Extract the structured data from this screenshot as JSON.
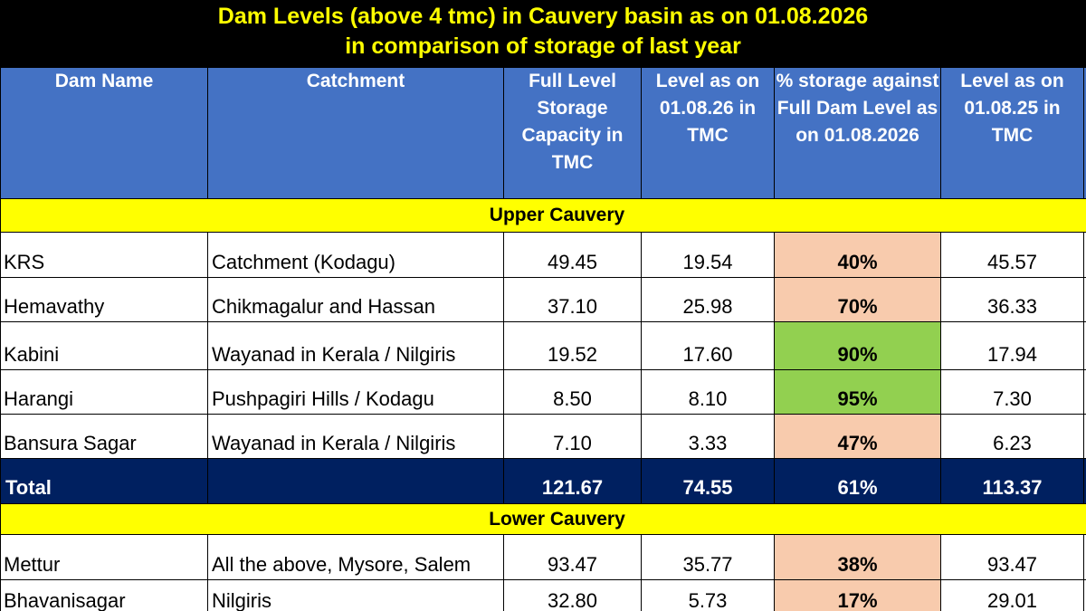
{
  "title": {
    "line1": "Dam Levels (above 4 tmc) in Cauvery basin as on 01.08.2026",
    "line2": "in comparison of storage of last year"
  },
  "headers": {
    "dam_name": "Dam Name",
    "catchment": "Catchment",
    "full_level": "Full Level Storage Capacity in TMC",
    "level_2026": "Level as on 01.08.26 in TMC",
    "pct_storage": "% storage against Full Dam Level  as on 01.08.2026",
    "level_2025": "Level as on 01.08.25 in TMC"
  },
  "sections": {
    "upper": "Upper Cauvery",
    "lower": "Lower Cauvery"
  },
  "upper_rows": [
    {
      "dam": "KRS",
      "catchment": "Catchment (Kodagu)",
      "full": "49.45",
      "level26": "19.54",
      "pct": "40%",
      "level25": "45.57"
    },
    {
      "dam": "Hemavathy",
      "catchment": "Chikmagalur and Hassan",
      "full": "37.10",
      "level26": "25.98",
      "pct": "70%",
      "level25": "36.33"
    },
    {
      "dam": "Kabini",
      "catchment": "Wayanad in Kerala / Nilgiris",
      "full": "19.52",
      "level26": "17.60",
      "pct": "90%",
      "level25": "17.94"
    },
    {
      "dam": "Harangi",
      "catchment": "Pushpagiri Hills / Kodagu",
      "full": "8.50",
      "level26": "8.10",
      "pct": "95%",
      "level25": "7.30"
    },
    {
      "dam": "Bansura Sagar",
      "catchment": "Wayanad in Kerala / Nilgiris",
      "full": "7.10",
      "level26": "3.33",
      "pct": "47%",
      "level25": "6.23"
    }
  ],
  "total": {
    "label": "Total",
    "full": "121.67",
    "level26": "74.55",
    "pct": "61%",
    "level25": "113.37"
  },
  "lower_rows": [
    {
      "dam": "Mettur",
      "catchment": "All the above, Mysore, Salem",
      "full": "93.47",
      "level26": "35.77",
      "pct": "38%",
      "level25": "93.47"
    },
    {
      "dam": "Bhavanisagar",
      "catchment": "Nilgiris",
      "full": "32.80",
      "level26": "5.73",
      "pct": "17%",
      "level25": "29.01"
    }
  ],
  "colors": {
    "title_bg": "#000000",
    "title_text": "#ffff00",
    "header_bg": "#4472c4",
    "section_bg": "#ffff00",
    "pct_low": "#f8cbad",
    "pct_high": "#92d050",
    "total_bg": "#002060"
  }
}
